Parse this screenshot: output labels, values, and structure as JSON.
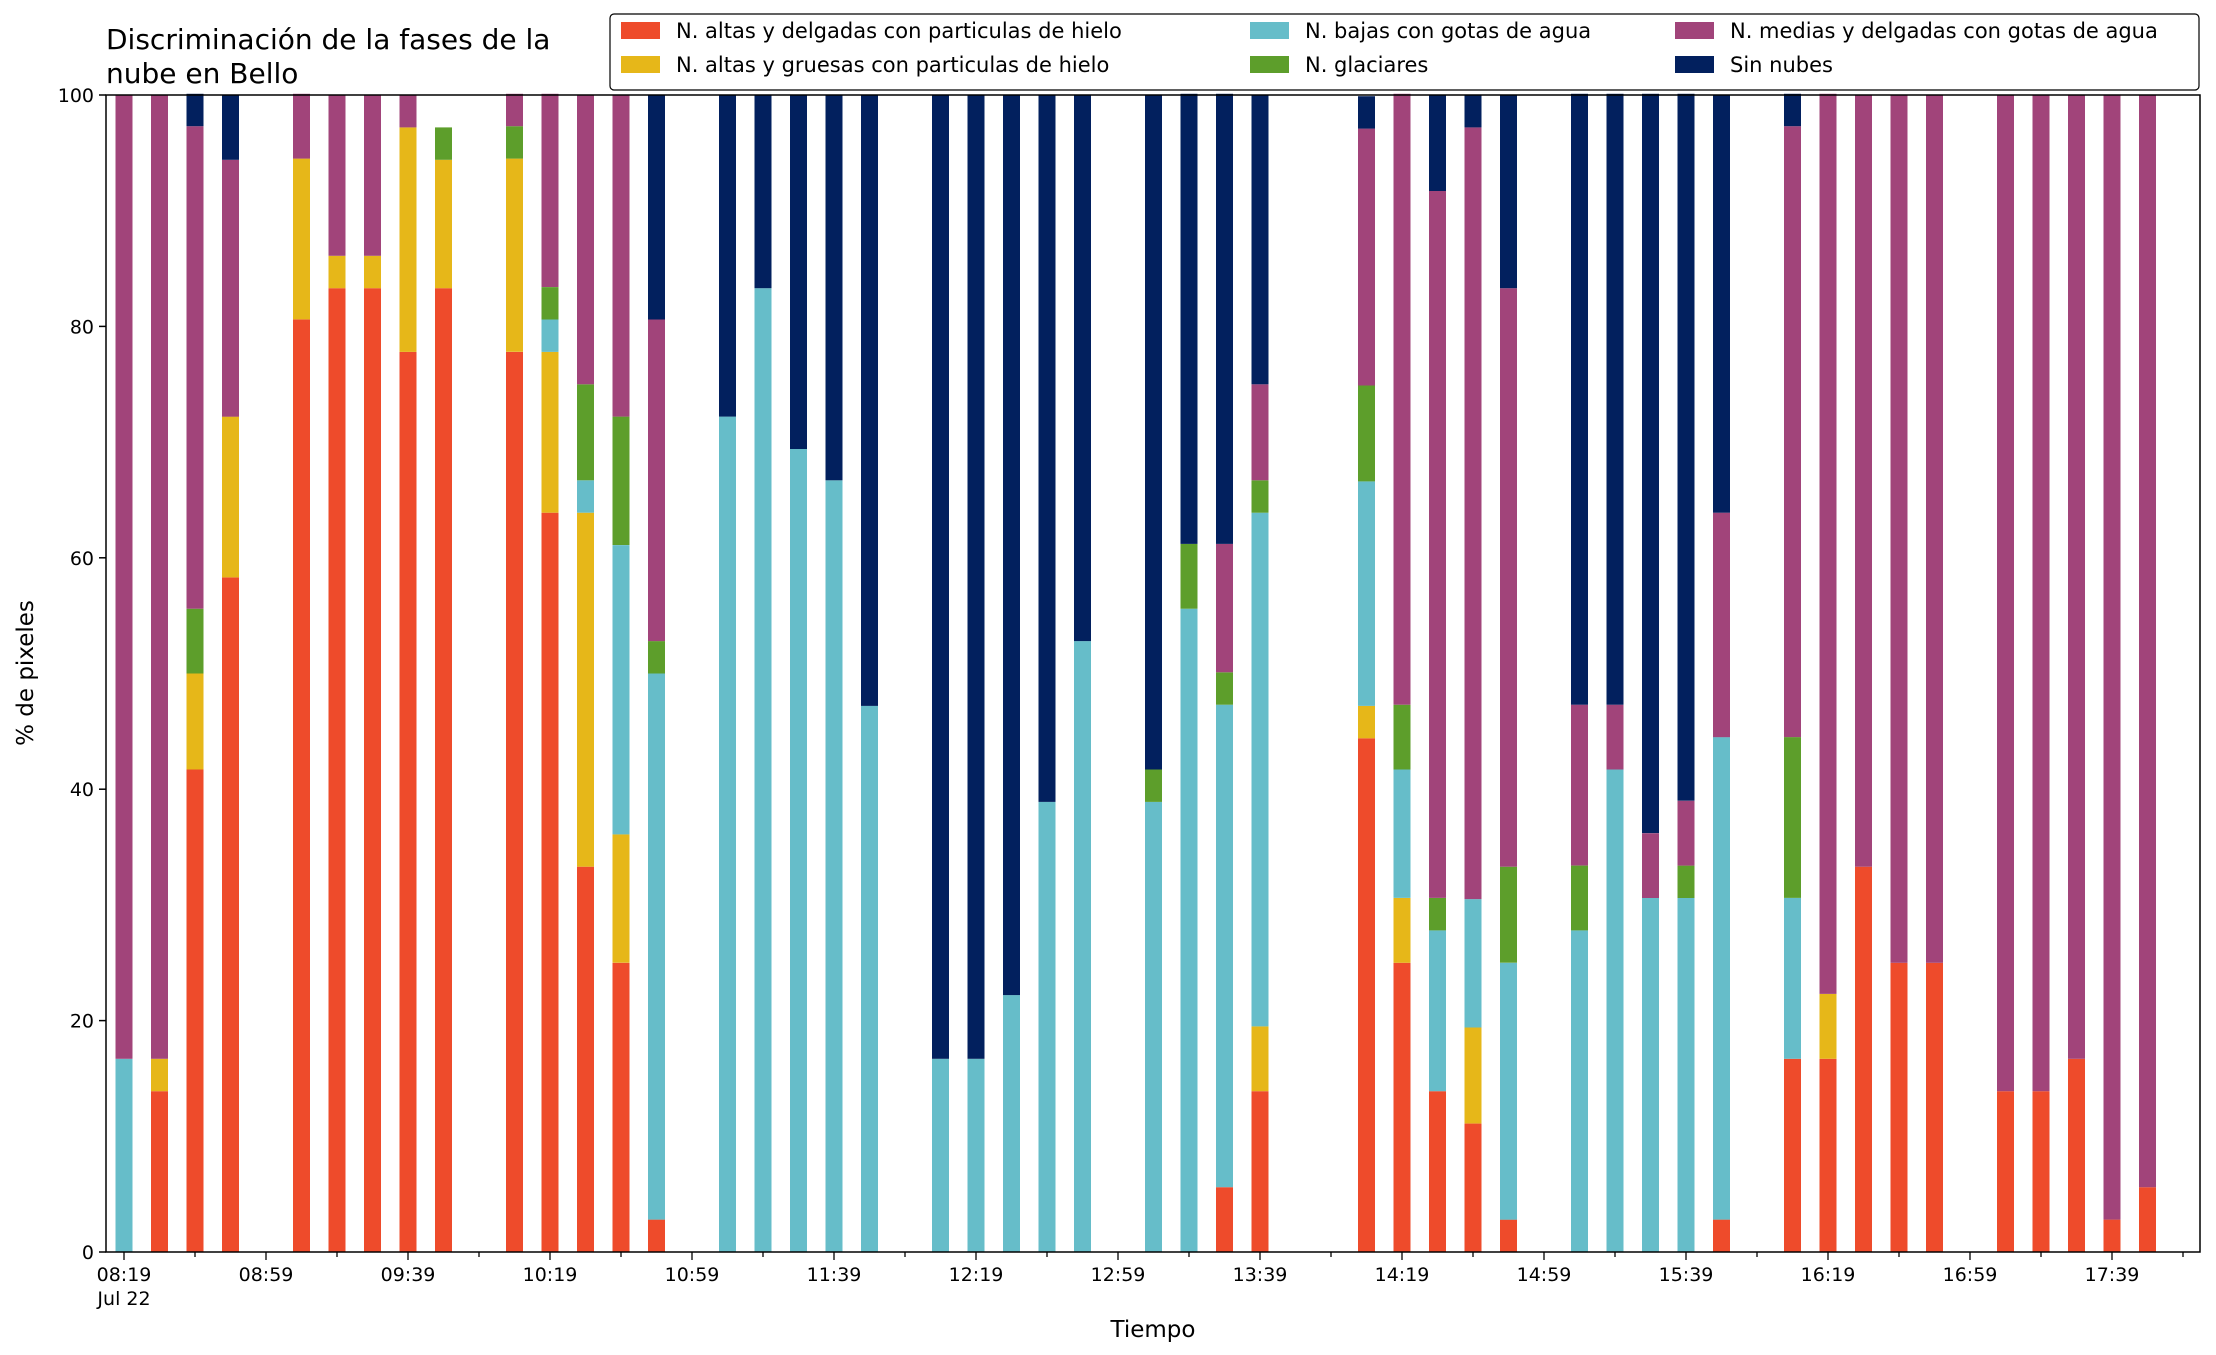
{
  "chart_data": {
    "type": "bar",
    "stacked": true,
    "title": "Discriminación de la fases de la nube en Bello",
    "title_lines": [
      "Discriminación de la fases de la",
      "nube en Bello"
    ],
    "xlabel": "Tiempo",
    "ylabel": "% de pixeles",
    "ylim": [
      0,
      100
    ],
    "yticks": [
      0,
      20,
      40,
      60,
      80,
      100
    ],
    "xticks": [
      "08:19",
      "08:59",
      "09:39",
      "10:19",
      "10:59",
      "11:39",
      "12:19",
      "12:59",
      "13:39",
      "14:19",
      "14:59",
      "15:39",
      "16:19",
      "16:59",
      "17:39"
    ],
    "x_sublabel": "Jul 22",
    "grid": false,
    "legend_position": "top-right",
    "x_start": "08:19",
    "x_end": "18:09",
    "categories": [
      "08:19",
      "08:29",
      "08:39",
      "08:49",
      "08:59",
      "09:09",
      "09:19",
      "09:29",
      "09:39",
      "09:49",
      "09:59",
      "10:09",
      "10:19",
      "10:29",
      "10:39",
      "10:49",
      "10:59",
      "11:09",
      "11:19",
      "11:29",
      "11:39",
      "11:49",
      "11:59",
      "12:09",
      "12:19",
      "12:29",
      "12:39",
      "12:49",
      "12:59",
      "13:09",
      "13:19",
      "13:29",
      "13:39",
      "13:49",
      "13:59",
      "14:09",
      "14:19",
      "14:29",
      "14:39",
      "14:49",
      "14:59",
      "15:09",
      "15:19",
      "15:29",
      "15:39",
      "15:49",
      "15:59",
      "16:09",
      "16:19",
      "16:29",
      "16:39",
      "16:49",
      "16:59",
      "17:09",
      "17:19",
      "17:29",
      "17:39",
      "17:49"
    ],
    "series": [
      {
        "name": "N. altas y delgadas con particulas de hielo",
        "color": "#ee4b2b",
        "values": [
          0,
          13.9,
          41.7,
          58.3,
          null,
          80.6,
          83.3,
          83.3,
          77.8,
          83.3,
          null,
          77.8,
          63.9,
          33.3,
          25,
          2.8,
          null,
          0,
          0,
          0,
          0,
          0,
          null,
          0,
          0,
          0,
          0,
          0,
          null,
          0,
          0,
          5.6,
          13.9,
          null,
          null,
          44.4,
          25,
          13.9,
          11.1,
          2.8,
          null,
          0,
          0,
          0,
          0,
          2.8,
          null,
          16.7,
          16.7,
          33.3,
          25,
          25,
          null,
          13.9,
          13.9,
          16.7,
          2.8,
          5.6
        ]
      },
      {
        "name": "N. altas y gruesas con particulas de hielo",
        "color": "#e6b719",
        "values": [
          0,
          2.8,
          8.3,
          13.9,
          null,
          13.9,
          2.8,
          2.8,
          19.4,
          11.1,
          null,
          16.7,
          13.9,
          30.6,
          11.1,
          0,
          null,
          0,
          0,
          0,
          0,
          0,
          null,
          0,
          0,
          0,
          0,
          0,
          null,
          0,
          0,
          0,
          5.6,
          null,
          null,
          2.8,
          5.6,
          0,
          8.3,
          0,
          null,
          0,
          0,
          0,
          0,
          0,
          null,
          0,
          5.6,
          0,
          0,
          0,
          null,
          0,
          0,
          0,
          0,
          0
        ]
      },
      {
        "name": "N. bajas con gotas de agua",
        "color": "#66bdc9",
        "values": [
          16.7,
          0,
          0,
          0,
          null,
          0,
          0,
          0,
          0,
          0,
          null,
          0,
          2.8,
          2.8,
          25,
          47.2,
          null,
          72.2,
          83.3,
          69.4,
          66.7,
          47.2,
          null,
          16.7,
          16.7,
          22.2,
          38.9,
          52.8,
          null,
          38.9,
          55.6,
          41.7,
          44.4,
          null,
          null,
          19.4,
          11.1,
          13.9,
          11.1,
          22.2,
          null,
          27.8,
          41.7,
          30.6,
          30.6,
          41.7,
          null,
          13.9,
          0,
          0,
          0,
          0,
          null,
          0,
          0,
          0,
          0,
          0
        ]
      },
      {
        "name": "N. glaciares",
        "color": "#5d9e2b",
        "values": [
          0,
          0,
          5.6,
          0,
          null,
          0,
          0,
          0,
          0,
          2.8,
          null,
          2.8,
          2.8,
          8.3,
          11.1,
          2.8,
          null,
          0,
          0,
          0,
          0,
          0,
          null,
          0,
          0,
          0,
          0,
          0,
          null,
          2.8,
          5.6,
          2.8,
          2.8,
          null,
          null,
          8.3,
          5.6,
          2.8,
          0,
          8.3,
          null,
          5.6,
          0,
          0,
          2.8,
          0,
          null,
          13.9,
          0,
          0,
          0,
          0,
          null,
          0,
          0,
          0,
          0,
          0
        ]
      },
      {
        "name": "N. medias y delgadas con gotas de agua",
        "color": "#a1447a",
        "values": [
          83.3,
          83.3,
          41.7,
          22.2,
          null,
          5.6,
          13.9,
          13.9,
          2.8,
          0,
          null,
          2.8,
          16.7,
          25,
          27.8,
          27.8,
          null,
          0,
          0,
          0,
          0,
          0,
          null,
          0,
          0,
          0,
          0,
          0,
          null,
          0,
          0,
          11.1,
          8.3,
          null,
          null,
          22.2,
          52.8,
          61.1,
          66.7,
          50,
          null,
          13.9,
          5.6,
          5.6,
          5.6,
          19.4,
          null,
          52.8,
          77.8,
          66.7,
          75,
          75,
          null,
          86.1,
          86.1,
          83.3,
          97.2,
          94.4
        ]
      },
      {
        "name": "Sin nubes",
        "color": "#02205e",
        "values": [
          0,
          0,
          2.8,
          5.6,
          null,
          0,
          0,
          0,
          0,
          0,
          null,
          0,
          0,
          0,
          0,
          19.4,
          null,
          27.8,
          16.7,
          30.6,
          33.3,
          52.8,
          null,
          83.3,
          83.3,
          77.8,
          61.1,
          47.2,
          null,
          58.3,
          38.9,
          38.9,
          25,
          null,
          null,
          2.8,
          0,
          8.3,
          2.8,
          16.7,
          null,
          52.8,
          52.8,
          63.9,
          61.1,
          36.1,
          null,
          2.8,
          0,
          0,
          0,
          0,
          null,
          0,
          0,
          0,
          0,
          0
        ]
      }
    ]
  }
}
